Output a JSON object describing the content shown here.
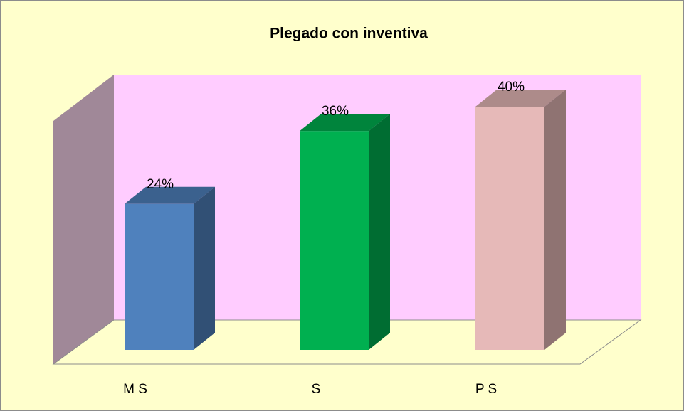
{
  "chart_data": {
    "type": "bar3d",
    "title": "Plegado con inventiva",
    "categories": [
      "M S",
      "S",
      "P S"
    ],
    "values": [
      24,
      36,
      40
    ],
    "value_labels": [
      "24%",
      "36%",
      "40%"
    ],
    "colors": [
      "#4f81bd",
      "#00b050",
      "#e6b9b8"
    ]
  }
}
